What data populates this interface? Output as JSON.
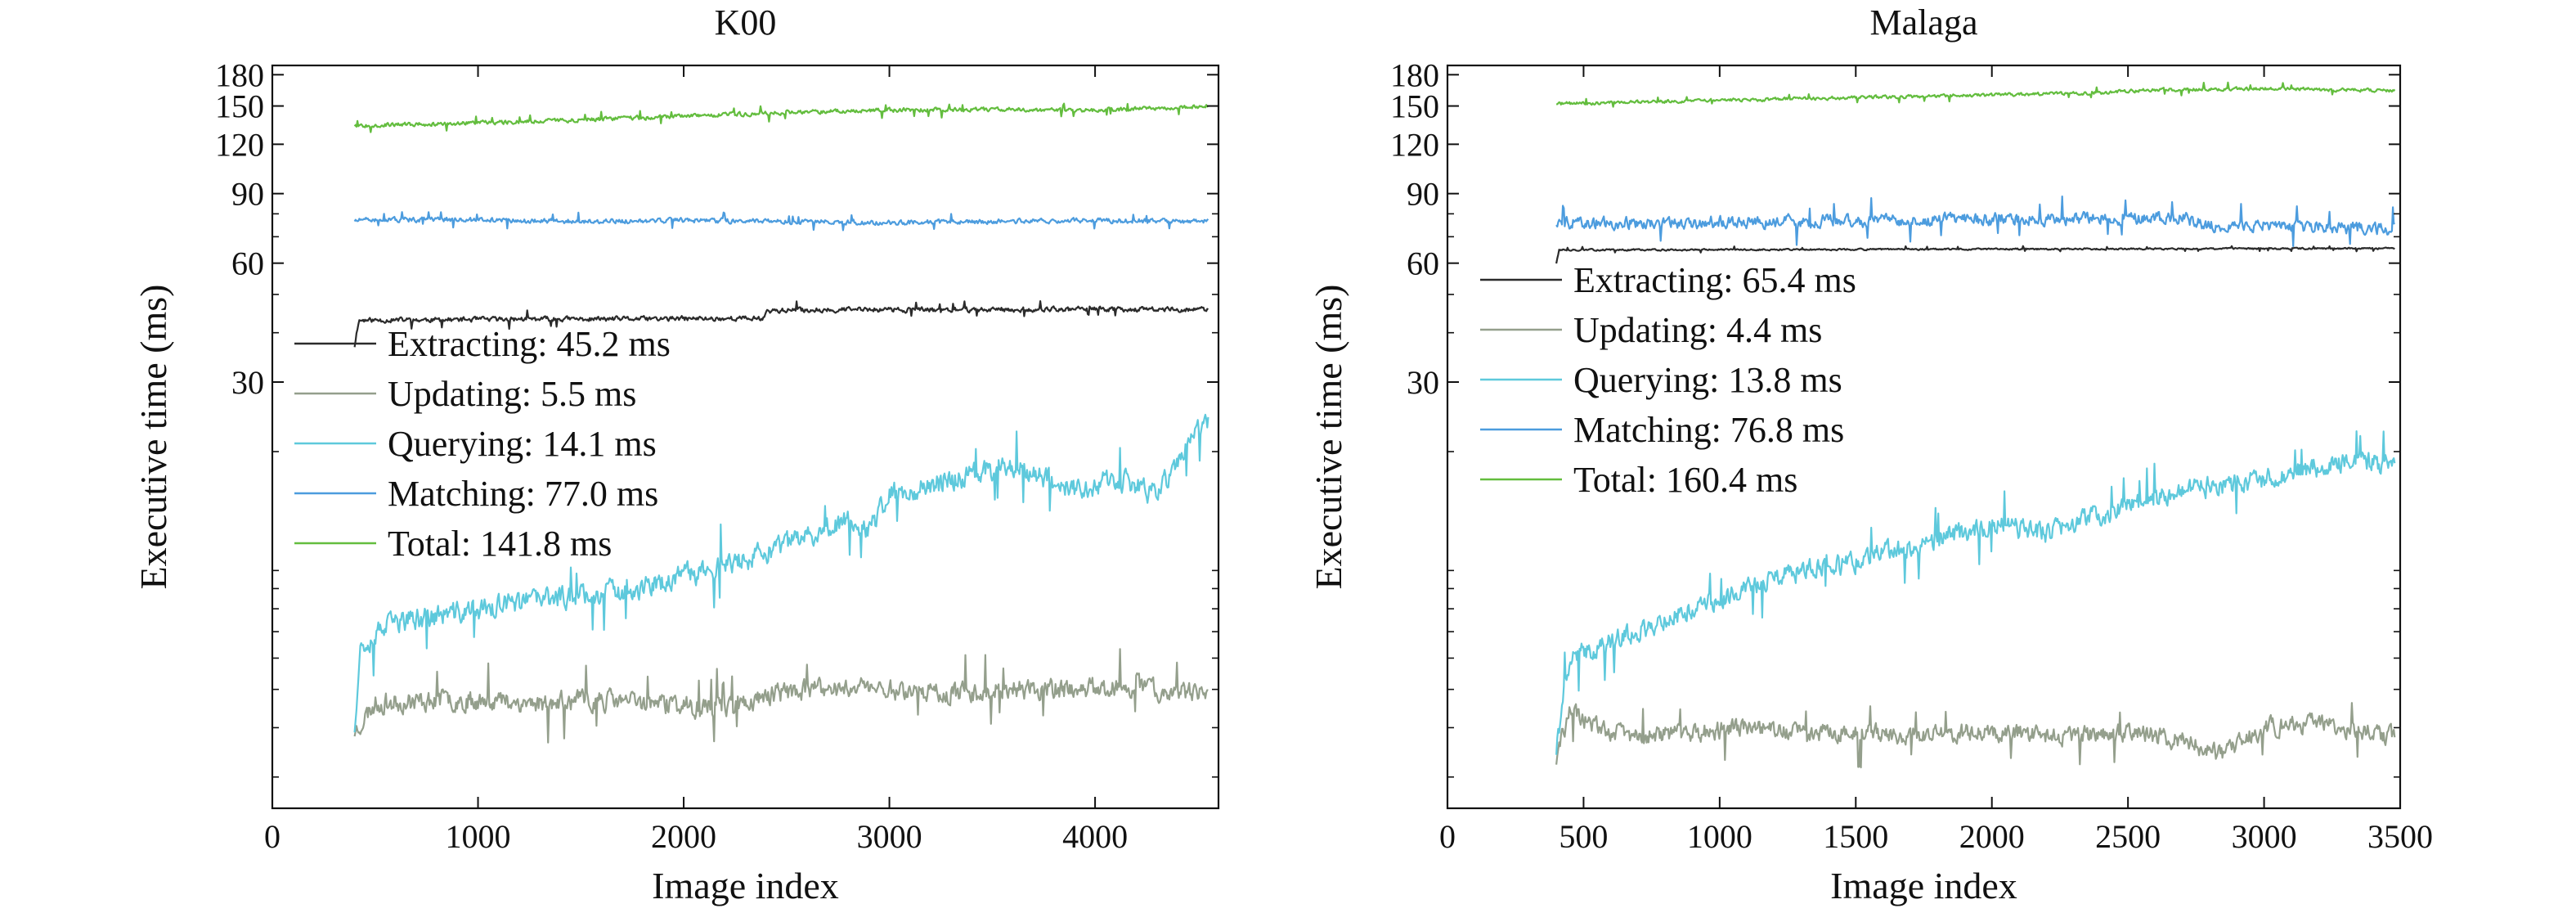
{
  "chart_data": [
    {
      "type": "line",
      "title": "K00",
      "xlabel": "Image index",
      "ylabel": "Executive time (ms)",
      "yscale": "log",
      "xlim": [
        0,
        4600
      ],
      "ylim": [
        2.5,
        190
      ],
      "xticks": [
        0,
        1000,
        2000,
        3000,
        4000
      ],
      "yticks": [
        30,
        60,
        90,
        120,
        150,
        180
      ],
      "legend_position": "center-left",
      "series": [
        {
          "name": "Extracting: 45.2 ms",
          "color": "#2b2b2b",
          "x": [
            400,
            420,
            1000,
            1200,
            1500,
            2000,
            2390,
            2400,
            2800,
            3200,
            3600,
            4000,
            4400,
            4550
          ],
          "y": [
            37,
            43,
            43.2,
            43.3,
            43.3,
            43.4,
            43.5,
            45.5,
            45.8,
            45.7,
            45.8,
            45.9,
            45.8,
            45.8
          ],
          "noise": 0.012,
          "seed": 11
        },
        {
          "name": "Updating: 5.5 ms",
          "color": "#949f8c",
          "x": [
            400,
            500,
            800,
            1100,
            1300,
            1600,
            1900,
            2100,
            2300,
            2450,
            2700,
            2850,
            3000,
            3300,
            3600,
            3900,
            4200,
            4400,
            4550
          ],
          "y": [
            3.9,
            4.6,
            4.7,
            4.7,
            4.6,
            4.7,
            4.6,
            4.5,
            4.6,
            4.9,
            5.0,
            5.1,
            5.0,
            4.9,
            5.0,
            5.0,
            5.1,
            4.9,
            4.8
          ],
          "noise": 0.05,
          "seed": 23
        },
        {
          "name": "Querying: 14.1 ms",
          "color": "#5ec9dc",
          "x": [
            400,
            430,
            600,
            900,
            1200,
            1500,
            1800,
            2100,
            2400,
            2600,
            2800,
            2900,
            3000,
            3300,
            3600,
            3900,
            4100,
            4300,
            4550
          ],
          "y": [
            4.0,
            6.5,
            7.4,
            7.8,
            8.3,
            8.7,
            9.0,
            10.0,
            11.0,
            12.2,
            13.5,
            12.5,
            15.5,
            17.0,
            18.5,
            16.0,
            17.0,
            15.5,
            24.0
          ],
          "noise": 0.055,
          "seed": 37
        },
        {
          "name": "Matching: 77.0 ms",
          "color": "#4c9cde",
          "x": [
            400,
            800,
            1500,
            2000,
            2500,
            3000,
            3500,
            4000,
            4550
          ],
          "y": [
            77,
            77.5,
            76.5,
            77,
            76.5,
            76,
            76.5,
            77,
            76.5
          ],
          "noise": 0.012,
          "seed": 51
        },
        {
          "name": "Total: 141.8 ms",
          "color": "#63bd3e",
          "x": [
            400,
            800,
            1200,
            1600,
            2000,
            2400,
            2800,
            3200,
            3600,
            4000,
            4550
          ],
          "y": [
            134,
            135,
            137,
            139,
            141,
            144,
            146,
            147,
            147,
            146,
            150
          ],
          "noise": 0.01,
          "seed": 67
        }
      ]
    },
    {
      "type": "line",
      "title": "Malaga",
      "xlabel": "Image index",
      "ylabel": "Executive time (ms)",
      "yscale": "log",
      "xlim": [
        0,
        3500
      ],
      "ylim": [
        2.5,
        190
      ],
      "xticks": [
        0,
        500,
        1000,
        1500,
        2000,
        2500,
        3000,
        3500
      ],
      "yticks": [
        30,
        60,
        90,
        120,
        150,
        180
      ],
      "legend_position": "center-left",
      "series": [
        {
          "name": "Extracting: 65.4 ms",
          "color": "#2b2b2b",
          "x": [
            400,
            410,
            1000,
            1500,
            2000,
            2500,
            3000,
            3480
          ],
          "y": [
            60,
            64.8,
            64.9,
            65,
            65.1,
            65.2,
            65.3,
            65.4
          ],
          "noise": 0.004,
          "seed": 13
        },
        {
          "name": "Updating: 4.4 ms",
          "color": "#949f8c",
          "x": [
            400,
            450,
            550,
            700,
            900,
            1100,
            1300,
            1500,
            1700,
            1900,
            2100,
            2300,
            2500,
            2700,
            2850,
            3000,
            3200,
            3480
          ],
          "y": [
            3.3,
            4.4,
            4.0,
            3.8,
            3.9,
            4.0,
            3.9,
            3.9,
            3.8,
            3.9,
            3.9,
            3.8,
            3.9,
            3.7,
            3.4,
            4.0,
            4.1,
            3.8
          ],
          "noise": 0.045,
          "seed": 29
        },
        {
          "name": "Querying: 13.8 ms",
          "color": "#5ec9dc",
          "x": [
            400,
            450,
            700,
            1000,
            1300,
            1500,
            1800,
            2000,
            2200,
            2500,
            2700,
            3000,
            3300,
            3480
          ],
          "y": [
            3.5,
            6.0,
            7.0,
            8.5,
            10.0,
            10.5,
            12.0,
            13.0,
            12.5,
            14.5,
            16.0,
            17.0,
            19.0,
            18.5
          ],
          "noise": 0.05,
          "seed": 41
        },
        {
          "name": "Matching: 76.8 ms",
          "color": "#4c9cde",
          "x": [
            400,
            800,
            1200,
            1600,
            2000,
            2400,
            2700,
            2800,
            3000,
            3480
          ],
          "y": [
            76,
            76,
            76.5,
            77,
            77.5,
            78,
            78,
            75,
            75,
            73
          ],
          "noise": 0.03,
          "seed": 59
        },
        {
          "name": "Total: 160.4 ms",
          "color": "#63bd3e",
          "x": [
            400,
            800,
            1200,
            1600,
            2000,
            2400,
            2600,
            3000,
            3480
          ],
          "y": [
            152,
            154,
            156,
            158,
            160,
            162,
            165,
            166,
            164
          ],
          "noise": 0.008,
          "seed": 71
        }
      ]
    }
  ]
}
